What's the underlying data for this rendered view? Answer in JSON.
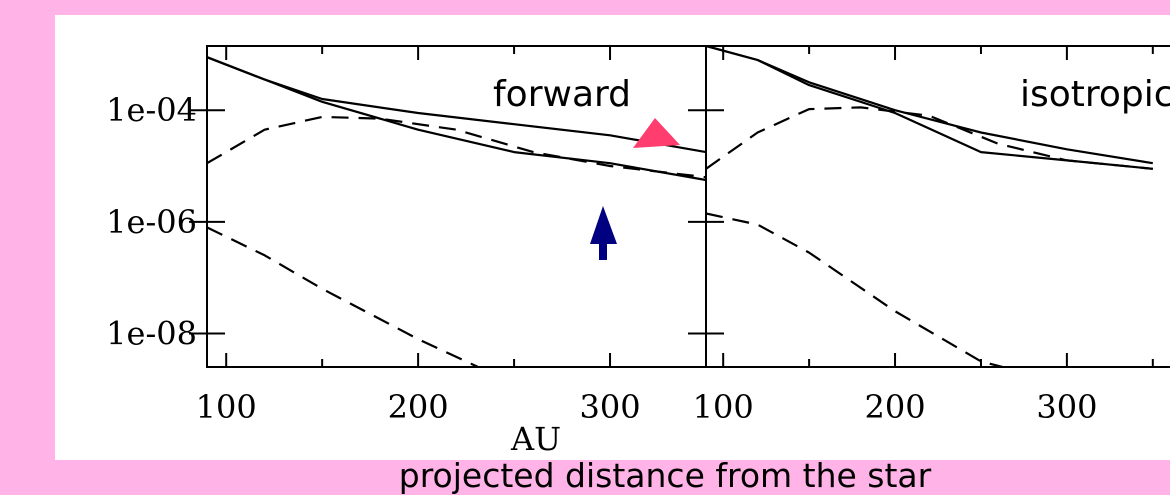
{
  "chart_data": {
    "type": "line",
    "scale": "log-y",
    "shared_x_label": "AU",
    "caption": "projected  distance from the star",
    "y_tick_labels": [
      "1e-04",
      "1e-06",
      "1e-08"
    ],
    "y_tick_values": [
      0.0001,
      1e-06,
      1e-08
    ],
    "grid": false,
    "colors": {
      "page_background": "#ffb3e6",
      "plot_background": "#ffffff",
      "red_arrow": "#ff3d6e",
      "blue_arrow": "#000080"
    },
    "panels": [
      {
        "annotation": "forward",
        "x_tick_labels": [
          "100",
          "200",
          "300"
        ],
        "xlim": [
          90,
          350
        ],
        "ylim_log10": [
          -8.6,
          -2.85
        ],
        "series": [
          {
            "style": "solid",
            "x": [
              90,
              120,
              150,
              200,
              250,
              300,
              350
            ],
            "y_log10": [
              -3.05,
              -3.45,
              -3.8,
              -4.05,
              -4.25,
              -4.45,
              -4.75
            ]
          },
          {
            "style": "solid",
            "x": [
              90,
              120,
              150,
              200,
              250,
              300,
              350
            ],
            "y_log10": [
              -3.05,
              -3.45,
              -3.85,
              -4.35,
              -4.75,
              -4.95,
              -5.25
            ]
          },
          {
            "style": "dashed",
            "x": [
              90,
              120,
              150,
              180,
              220,
              260,
              300,
              350
            ],
            "y_log10": [
              -4.95,
              -4.35,
              -4.12,
              -4.15,
              -4.35,
              -4.75,
              -5.0,
              -5.2
            ]
          },
          {
            "style": "dashed",
            "x": [
              90,
              120,
              150,
              200,
              250
            ],
            "y_log10": [
              -6.1,
              -6.6,
              -7.2,
              -8.1,
              -8.9
            ]
          }
        ],
        "markers": [
          {
            "label": "red arrow",
            "x": 325,
            "y_log10": -4.4
          },
          {
            "label": "blue arrow",
            "x": 300,
            "y_log10": -5.8
          }
        ]
      },
      {
        "annotation": "isotropic",
        "x_tick_labels": [
          "100",
          "200",
          "300"
        ],
        "xlim": [
          90,
          360
        ],
        "ylim_log10": [
          -8.6,
          -2.85
        ],
        "series": [
          {
            "style": "solid",
            "x": [
              90,
              120,
              150,
              200,
              250,
              300,
              350
            ],
            "y_log10": [
              -2.85,
              -3.1,
              -3.5,
              -4.0,
              -4.4,
              -4.7,
              -4.95
            ]
          },
          {
            "style": "solid",
            "x": [
              90,
              120,
              150,
              200,
              250,
              300,
              350
            ],
            "y_log10": [
              -2.85,
              -3.1,
              -3.55,
              -4.05,
              -4.75,
              -4.9,
              -5.05
            ]
          },
          {
            "style": "dashed",
            "x": [
              90,
              120,
              150,
              180,
              220,
              260,
              300,
              350
            ],
            "y_log10": [
              -5.05,
              -4.4,
              -3.98,
              -3.95,
              -4.1,
              -4.6,
              -4.9,
              -5.05
            ]
          },
          {
            "style": "dashed",
            "x": [
              90,
              120,
              150,
              200,
              250,
              300
            ],
            "y_log10": [
              -5.85,
              -6.05,
              -6.55,
              -7.6,
              -8.5,
              -8.9
            ]
          }
        ]
      }
    ]
  }
}
